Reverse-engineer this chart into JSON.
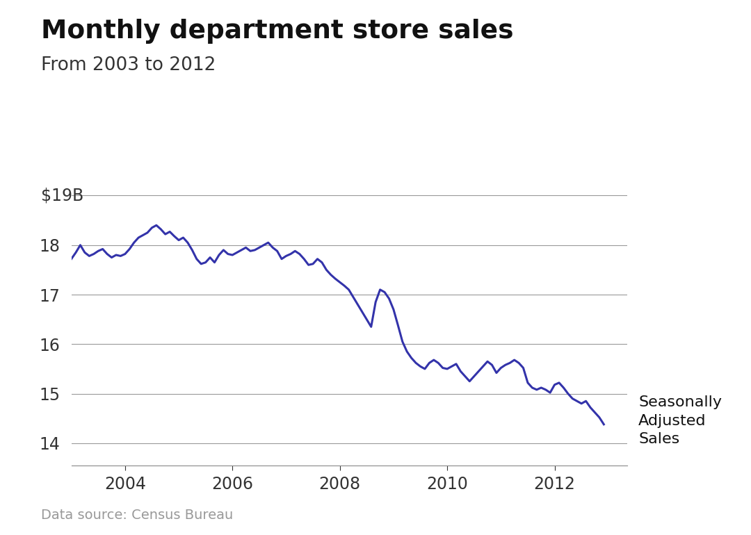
{
  "title": "Monthly department store sales",
  "subtitle": "From 2003 to 2012",
  "data_source": "Data source: Census Bureau",
  "annotation": "Seasonally\nAdjusted\nSales",
  "line_color": "#3333aa",
  "line_width": 2.2,
  "background_color": "#ffffff",
  "yticks": [
    14,
    15,
    16,
    17,
    18
  ],
  "xticks": [
    2004,
    2006,
    2008,
    2010,
    2012
  ],
  "ylim": [
    13.55,
    19.6
  ],
  "xlim": [
    2003.0,
    2013.35
  ],
  "values": [
    17.72,
    17.85,
    18.0,
    17.85,
    17.78,
    17.82,
    17.88,
    17.92,
    17.82,
    17.75,
    17.8,
    17.78,
    17.82,
    17.92,
    18.05,
    18.15,
    18.2,
    18.25,
    18.35,
    18.4,
    18.32,
    18.22,
    18.27,
    18.18,
    18.1,
    18.15,
    18.05,
    17.9,
    17.72,
    17.62,
    17.65,
    17.75,
    17.65,
    17.8,
    17.9,
    17.82,
    17.8,
    17.85,
    17.9,
    17.95,
    17.88,
    17.9,
    17.95,
    18.0,
    18.05,
    17.95,
    17.88,
    17.72,
    17.78,
    17.82,
    17.88,
    17.82,
    17.72,
    17.6,
    17.62,
    17.72,
    17.65,
    17.5,
    17.4,
    17.32,
    17.25,
    17.18,
    17.1,
    16.95,
    16.8,
    16.65,
    16.5,
    16.35,
    16.85,
    17.1,
    17.05,
    16.92,
    16.7,
    16.38,
    16.05,
    15.85,
    15.72,
    15.62,
    15.55,
    15.5,
    15.62,
    15.68,
    15.62,
    15.52,
    15.5,
    15.55,
    15.6,
    15.45,
    15.35,
    15.25,
    15.35,
    15.45,
    15.55,
    15.65,
    15.58,
    15.42,
    15.52,
    15.58,
    15.62,
    15.68,
    15.62,
    15.52,
    15.22,
    15.12,
    15.08,
    15.12,
    15.08,
    15.02,
    15.18,
    15.22,
    15.12,
    15.0,
    14.9,
    14.85,
    14.8,
    14.85,
    14.72,
    14.62,
    14.52,
    14.38
  ],
  "start_year": 2003,
  "start_month": 1
}
